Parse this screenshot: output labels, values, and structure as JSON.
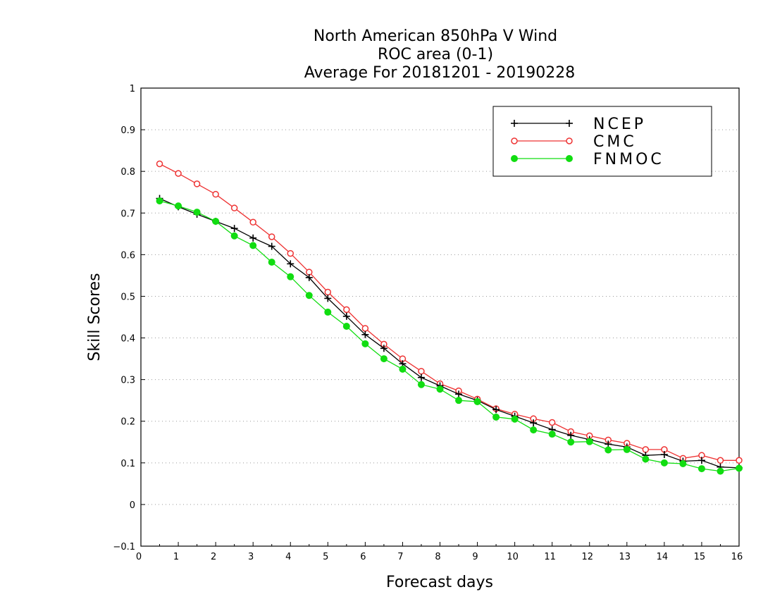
{
  "chart_data": {
    "type": "line",
    "title": [
      "North American 850hPa V Wind",
      "ROC area (0-1)",
      "Average For 20181201 - 20190228"
    ],
    "xlabel": "Forecast days",
    "ylabel": "Skill Scores",
    "xlim": [
      0,
      16
    ],
    "ylim": [
      -0.1,
      1
    ],
    "xticks": [
      "0",
      "1",
      "2",
      "3",
      "4",
      "5",
      "6",
      "7",
      "8",
      "9",
      "10",
      "11",
      "12",
      "13",
      "14",
      "15",
      "16"
    ],
    "yticks": [
      "−0.1",
      "0",
      "0.1",
      "0.2",
      "0.3",
      "0.4",
      "0.5",
      "0.6",
      "0.7",
      "0.8",
      "0.9",
      "1"
    ],
    "grid": "horizontal-dotted",
    "legend_position": "top-right",
    "x": [
      0.5,
      1,
      1.5,
      2,
      2.5,
      3,
      3.5,
      4,
      4.5,
      5,
      5.5,
      6,
      6.5,
      7,
      7.5,
      8,
      8.5,
      9,
      9.5,
      10,
      10.5,
      11,
      11.5,
      12,
      12.5,
      13,
      13.5,
      14,
      14.5,
      15,
      15.5,
      16
    ],
    "series": [
      {
        "name": "NCEP",
        "color": "#000000",
        "marker": "plus",
        "values": [
          0.735,
          0.715,
          0.697,
          0.68,
          0.663,
          0.64,
          0.62,
          0.578,
          0.545,
          0.495,
          0.452,
          0.408,
          0.375,
          0.338,
          0.305,
          0.285,
          0.265,
          0.25,
          0.228,
          0.212,
          0.196,
          0.18,
          0.166,
          0.156,
          0.145,
          0.138,
          0.118,
          0.12,
          0.104,
          0.106,
          0.09,
          0.088
        ]
      },
      {
        "name": "CMC",
        "color": "#ee3333",
        "marker": "open-circle",
        "values": [
          0.818,
          0.795,
          0.77,
          0.745,
          0.712,
          0.678,
          0.643,
          0.603,
          0.558,
          0.51,
          0.468,
          0.423,
          0.385,
          0.35,
          0.32,
          0.29,
          0.273,
          0.253,
          0.23,
          0.217,
          0.206,
          0.197,
          0.175,
          0.165,
          0.155,
          0.147,
          0.132,
          0.132,
          0.111,
          0.118,
          0.106,
          0.106
        ]
      },
      {
        "name": "FNMOC",
        "color": "#11dd11",
        "marker": "filled-circle",
        "values": [
          0.729,
          0.717,
          0.702,
          0.68,
          0.645,
          0.622,
          0.582,
          0.547,
          0.502,
          0.462,
          0.428,
          0.386,
          0.35,
          0.325,
          0.288,
          0.277,
          0.25,
          0.247,
          0.21,
          0.205,
          0.179,
          0.169,
          0.15,
          0.151,
          0.131,
          0.132,
          0.109,
          0.1,
          0.098,
          0.086,
          0.08,
          0.087
        ]
      }
    ]
  }
}
